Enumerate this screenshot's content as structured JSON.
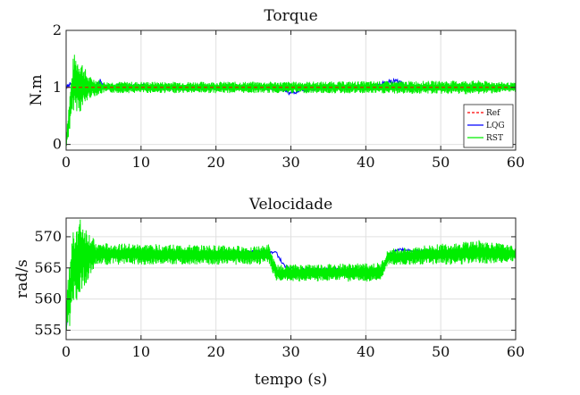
{
  "colors": {
    "ref": "#ff0000",
    "lqg": "#0000ff",
    "rst": "#00ee00",
    "grid": "#e0e0e0",
    "axis": "#262626"
  },
  "chart_data": [
    {
      "type": "line",
      "title": "Torque",
      "xlabel": "",
      "ylabel": "N.m",
      "xlim": [
        0,
        60
      ],
      "ylim": [
        -0.1,
        2
      ],
      "xticks": [
        "0",
        "10",
        "20",
        "30",
        "40",
        "50",
        "60"
      ],
      "yticks": [
        "0",
        "1",
        "2"
      ],
      "grid": true,
      "legend_position": "bottom-right",
      "legend": [
        "Ref",
        "LQG",
        "RST"
      ],
      "series": [
        {
          "name": "Ref",
          "style": "dashed",
          "x": [
            0,
            60
          ],
          "y": [
            1,
            1
          ]
        },
        {
          "name": "LQG",
          "style": "solid",
          "x": [
            0,
            1,
            2,
            3,
            4,
            4.5,
            5,
            10,
            15,
            20,
            25,
            29,
            30,
            31,
            35,
            40,
            44,
            45,
            46,
            50,
            55,
            60
          ],
          "y": [
            1,
            1.1,
            0.95,
            1.05,
            1.0,
            1.12,
            1.0,
            1.02,
            0.98,
            1.0,
            1.01,
            0.97,
            0.88,
            0.95,
            1.0,
            1.0,
            1.12,
            1.05,
            1.0,
            1.0,
            1.02,
            1.0
          ]
        },
        {
          "name": "RST",
          "style": "solid",
          "approx_mean": 1.0,
          "envelope": [
            {
              "x": 0,
              "min": -0.1,
              "max": 0.2
            },
            {
              "x": 1,
              "min": 0.6,
              "max": 1.6
            },
            {
              "x": 2,
              "min": 0.55,
              "max": 1.5
            },
            {
              "x": 3,
              "min": 0.8,
              "max": 1.2
            },
            {
              "x": 5,
              "min": 0.9,
              "max": 1.1
            },
            {
              "x": 30,
              "min": 0.9,
              "max": 1.1
            },
            {
              "x": 55,
              "min": 0.88,
              "max": 1.12
            },
            {
              "x": 60,
              "min": 0.92,
              "max": 1.08
            }
          ]
        }
      ]
    },
    {
      "type": "line",
      "title": "Velocidade",
      "xlabel": "tempo (s)",
      "ylabel": "rad/s",
      "xlim": [
        0,
        60
      ],
      "ylim": [
        553.5,
        573
      ],
      "xticks": [
        "0",
        "10",
        "20",
        "30",
        "40",
        "50",
        "60"
      ],
      "yticks": [
        "555",
        "560",
        "565",
        "570"
      ],
      "grid": true,
      "series": [
        {
          "name": "LQG",
          "style": "solid",
          "x": [
            0,
            1,
            2,
            4,
            10,
            20,
            26,
            28,
            29,
            30,
            35,
            40,
            42,
            43,
            44,
            50,
            60
          ],
          "y": [
            555,
            566,
            569,
            567.4,
            567.4,
            567.4,
            567.6,
            567.5,
            565.5,
            564.8,
            564.7,
            564.6,
            564.5,
            566.5,
            568,
            567.5,
            567.2
          ]
        },
        {
          "name": "RST",
          "style": "solid",
          "envelope": [
            {
              "x": 0,
              "min": 553.5,
              "max": 560
            },
            {
              "x": 1,
              "min": 558,
              "max": 572.5
            },
            {
              "x": 2,
              "min": 561,
              "max": 573
            },
            {
              "x": 4,
              "min": 565.5,
              "max": 569
            },
            {
              "x": 26,
              "min": 565.5,
              "max": 568.5
            },
            {
              "x": 27,
              "min": 566,
              "max": 568.8
            },
            {
              "x": 28,
              "min": 562.8,
              "max": 565.5
            },
            {
              "x": 42,
              "min": 562.8,
              "max": 565.8
            },
            {
              "x": 43,
              "min": 565.5,
              "max": 568
            },
            {
              "x": 55,
              "min": 565.5,
              "max": 569.5
            },
            {
              "x": 60,
              "min": 566,
              "max": 568.5
            }
          ]
        }
      ]
    }
  ]
}
